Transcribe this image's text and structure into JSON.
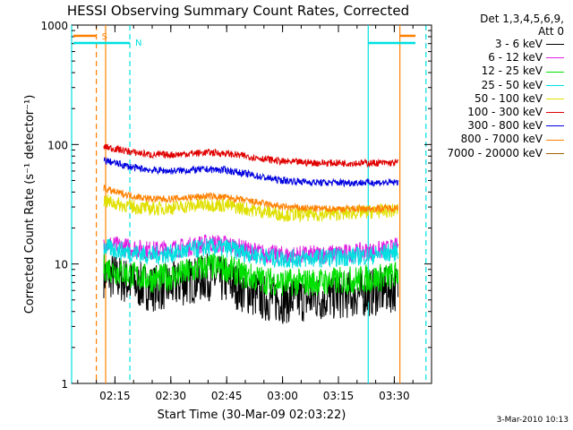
{
  "chart_data": {
    "type": "line",
    "title": "HESSI Observing Summary Count Rates, Corrected",
    "xlabel": "Start Time (30-Mar-09 02:03:22)",
    "ylabel": "Corrected Count Rate (s⁻¹ detector⁻¹)",
    "yscale": "log",
    "ylim": [
      1,
      1000
    ],
    "yticks": [
      "1",
      "10",
      "100",
      "1000"
    ],
    "xlim": [
      "02:03:22",
      "03:40:00"
    ],
    "xticks": [
      "02:15",
      "02:30",
      "02:45",
      "03:00",
      "03:15",
      "03:30"
    ],
    "grid": false,
    "legend_position": "right",
    "legend_header": [
      "Det 1,3,4,5,6,9,",
      "Att 0"
    ],
    "series": [
      {
        "name": "3 - 6 keV",
        "color": "#000000",
        "x": [
          "02:12",
          "02:15",
          "02:20",
          "02:25",
          "02:30",
          "02:35",
          "02:40",
          "02:45",
          "02:50",
          "02:55",
          "03:00",
          "03:05",
          "03:10",
          "03:15",
          "03:20",
          "03:25",
          "03:30",
          "03:31"
        ],
        "values": [
          8.2,
          7.8,
          6.8,
          6.3,
          6.5,
          7.2,
          7.8,
          7.2,
          6.0,
          5.2,
          5.0,
          5.1,
          5.2,
          5.4,
          5.6,
          5.8,
          6.2,
          6.5
        ]
      },
      {
        "name": "6 - 12 keV",
        "color": "#e020e0",
        "x": [
          "02:12",
          "02:15",
          "02:20",
          "02:25",
          "02:30",
          "02:35",
          "02:40",
          "02:45",
          "02:50",
          "02:55",
          "03:00",
          "03:05",
          "03:10",
          "03:15",
          "03:20",
          "03:25",
          "03:30",
          "03:31"
        ],
        "values": [
          15.0,
          14.2,
          13.6,
          13.0,
          13.4,
          14.0,
          15.0,
          14.6,
          13.2,
          12.2,
          11.8,
          11.9,
          12.0,
          12.2,
          12.5,
          12.8,
          13.6,
          14.0
        ]
      },
      {
        "name": "12 - 25 keV",
        "color": "#00e000",
        "x": [
          "02:12",
          "02:15",
          "02:20",
          "02:25",
          "02:30",
          "02:35",
          "02:40",
          "02:45",
          "02:50",
          "02:55",
          "03:00",
          "03:05",
          "03:10",
          "03:15",
          "03:20",
          "03:25",
          "03:30",
          "03:31"
        ],
        "values": [
          9.5,
          8.8,
          8.0,
          7.5,
          7.8,
          8.6,
          9.6,
          9.2,
          8.0,
          7.3,
          7.0,
          7.0,
          7.1,
          7.2,
          7.4,
          7.6,
          8.0,
          8.4
        ]
      },
      {
        "name": "25 - 50 keV",
        "color": "#00e0e0",
        "x": [
          "02:12",
          "02:15",
          "02:20",
          "02:25",
          "02:30",
          "02:35",
          "02:40",
          "02:45",
          "02:50",
          "02:55",
          "03:00",
          "03:05",
          "03:10",
          "03:15",
          "03:20",
          "03:25",
          "03:30",
          "03:31"
        ],
        "values": [
          13.8,
          13.2,
          12.4,
          11.8,
          12.2,
          13.0,
          13.8,
          13.6,
          12.4,
          11.5,
          11.0,
          11.1,
          11.2,
          11.4,
          11.6,
          11.9,
          12.6,
          13.0
        ]
      },
      {
        "name": "50 - 100 keV",
        "color": "#e0e000",
        "x": [
          "02:12",
          "02:15",
          "02:20",
          "02:25",
          "02:30",
          "02:35",
          "02:40",
          "02:45",
          "02:50",
          "02:55",
          "03:00",
          "03:05",
          "03:10",
          "03:15",
          "03:20",
          "03:25",
          "03:30",
          "03:31"
        ],
        "values": [
          34,
          32,
          30,
          29,
          29.5,
          30.5,
          31.5,
          31,
          29,
          27.5,
          26,
          26,
          26,
          26.5,
          27,
          27.5,
          28,
          28.5
        ]
      },
      {
        "name": "100 - 300 keV",
        "color": "#e00000",
        "x": [
          "02:12",
          "02:15",
          "02:20",
          "02:25",
          "02:30",
          "02:35",
          "02:40",
          "02:45",
          "02:50",
          "02:55",
          "03:00",
          "03:05",
          "03:10",
          "03:15",
          "03:20",
          "03:25",
          "03:30",
          "03:31"
        ],
        "values": [
          96,
          92,
          86,
          82,
          82,
          84,
          86,
          84,
          80,
          76,
          72,
          71,
          70,
          70,
          70,
          70,
          70,
          71
        ]
      },
      {
        "name": "300 - 800 keV",
        "color": "#0000e0",
        "x": [
          "02:12",
          "02:15",
          "02:20",
          "02:25",
          "02:30",
          "02:35",
          "02:40",
          "02:45",
          "02:50",
          "02:55",
          "03:00",
          "03:05",
          "03:10",
          "03:15",
          "03:20",
          "03:25",
          "03:30",
          "03:31"
        ],
        "values": [
          74,
          70,
          64,
          61,
          60,
          61,
          62,
          61,
          57,
          53,
          50,
          49,
          48,
          48,
          48,
          48,
          48,
          49
        ]
      },
      {
        "name": "800 - 7000 keV",
        "color": "#ff8000",
        "x": [
          "02:12",
          "02:15",
          "02:20",
          "02:25",
          "02:30",
          "02:35",
          "02:40",
          "02:45",
          "02:50",
          "02:55",
          "03:00",
          "03:05",
          "03:10",
          "03:15",
          "03:20",
          "03:25",
          "03:30",
          "03:31"
        ],
        "values": [
          43,
          40,
          37,
          35,
          35,
          36,
          37,
          36,
          34,
          32,
          30,
          29.5,
          29,
          29,
          29,
          29,
          29.5,
          30
        ]
      },
      {
        "name": "7000 - 20000 keV",
        "color": "#a06000",
        "x": [],
        "values": []
      }
    ],
    "annotations": [
      {
        "text": "S",
        "color": "#ff8000"
      },
      {
        "text": "N",
        "color": "#00e0e0"
      }
    ],
    "vertical_markers": [
      {
        "x": "02:10:00",
        "color": "#ff8000",
        "style": "dashed"
      },
      {
        "x": "02:12:30",
        "color": "#ff8000",
        "style": "solid"
      },
      {
        "x": "02:19:00",
        "color": "#00e0e0",
        "style": "dashed"
      },
      {
        "x": "03:23:00",
        "color": "#00e0e0",
        "style": "solid"
      },
      {
        "x": "03:31:30",
        "color": "#ff8000",
        "style": "solid"
      },
      {
        "x": "03:38:30",
        "color": "#00e0e0",
        "style": "dashed"
      },
      {
        "x": "02:03:22",
        "color": "#00e0e0",
        "style": "solid"
      }
    ],
    "timestamp": "3-Mar-2010 10:13"
  }
}
